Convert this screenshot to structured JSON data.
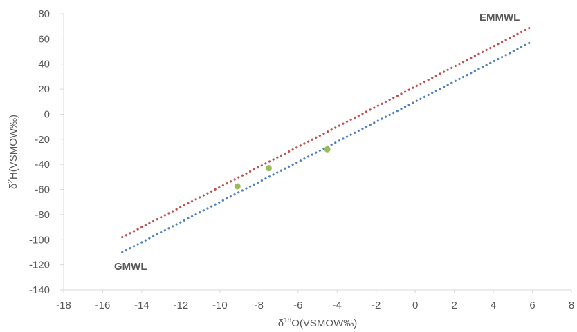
{
  "chart_data": {
    "type": "scatter",
    "title": "",
    "xlabel": "δ18O(VSMOW‰)",
    "ylabel": "δ2H(VSMOW‰)",
    "xlim": [
      -18,
      8
    ],
    "ylim": [
      -140,
      80
    ],
    "x_ticks": [
      -18,
      -16,
      -14,
      -12,
      -10,
      -8,
      -6,
      -4,
      -2,
      0,
      2,
      4,
      6,
      8
    ],
    "y_ticks": [
      -140,
      -120,
      -100,
      -80,
      -60,
      -40,
      -20,
      0,
      20,
      40,
      60,
      80
    ],
    "grid": false,
    "series": [
      {
        "name": "EMMWL",
        "kind": "dotted-line",
        "color": "#c0504d",
        "slope": 8,
        "intercept": 22,
        "x": [
          -15,
          6
        ]
      },
      {
        "name": "GMWL",
        "kind": "dotted-line",
        "color": "#4f81bd",
        "slope": 8,
        "intercept": 10,
        "x": [
          -15,
          6
        ]
      },
      {
        "kind": "points",
        "color": "#9bbb59",
        "x": [
          -9.1,
          -7.5,
          -4.5
        ],
        "y": [
          -57.5,
          -43,
          -28
        ]
      }
    ]
  }
}
